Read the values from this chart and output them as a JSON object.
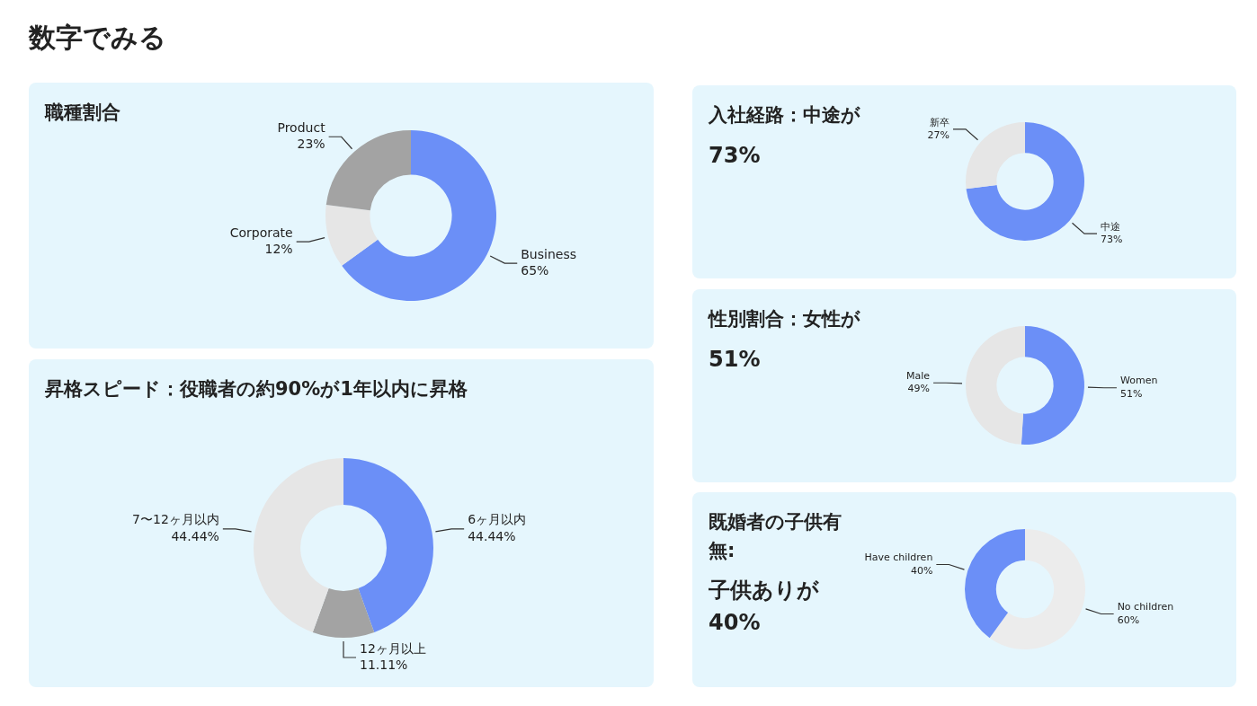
{
  "chart_data": [
    {
      "type": "other",
      "title": "数字でみる"
    },
    {
      "type": "donut",
      "title": "職種割合",
      "categories": [
        "Business",
        "Corporate",
        "Product"
      ],
      "values": [
        65,
        12,
        23
      ],
      "value_labels": [
        "65%",
        "12%",
        "23%"
      ],
      "colors": [
        "#6b8ff7",
        "#e6e6e6",
        "#a3a3a3"
      ]
    },
    {
      "type": "donut",
      "title": "昇格スピード：役職者の約90%が1年以内に昇格",
      "categories": [
        "6ヶ月以内",
        "12ヶ月以上",
        "7〜12ヶ月以内"
      ],
      "values": [
        44.44,
        11.11,
        44.44
      ],
      "value_labels": [
        "44.44%",
        "11.11%",
        "44.44%"
      ],
      "colors": [
        "#6b8ff7",
        "#a3a3a3",
        "#e6e6e6"
      ]
    },
    {
      "type": "donut",
      "title": "入社経路：中途が",
      "subtitle": "73%",
      "categories": [
        "中途",
        "新卒"
      ],
      "values": [
        73,
        27
      ],
      "value_labels": [
        "73%",
        "27%"
      ],
      "colors": [
        "#6b8ff7",
        "#e6e6e6"
      ]
    },
    {
      "type": "donut",
      "title": "性別割合：女性が",
      "subtitle": "51%",
      "categories": [
        "Women",
        "Male"
      ],
      "values": [
        51,
        49
      ],
      "value_labels": [
        "51%",
        "49%"
      ],
      "colors": [
        "#6b8ff7",
        "#e6e6e6"
      ]
    },
    {
      "type": "donut",
      "title": "既婚者の子供有無:",
      "subtitle": "子供ありが40%",
      "categories": [
        "No children",
        "Have children"
      ],
      "values": [
        60,
        40
      ],
      "value_labels": [
        "60%",
        "40%"
      ],
      "colors": [
        "#ececec",
        "#6b8ff7"
      ]
    }
  ]
}
